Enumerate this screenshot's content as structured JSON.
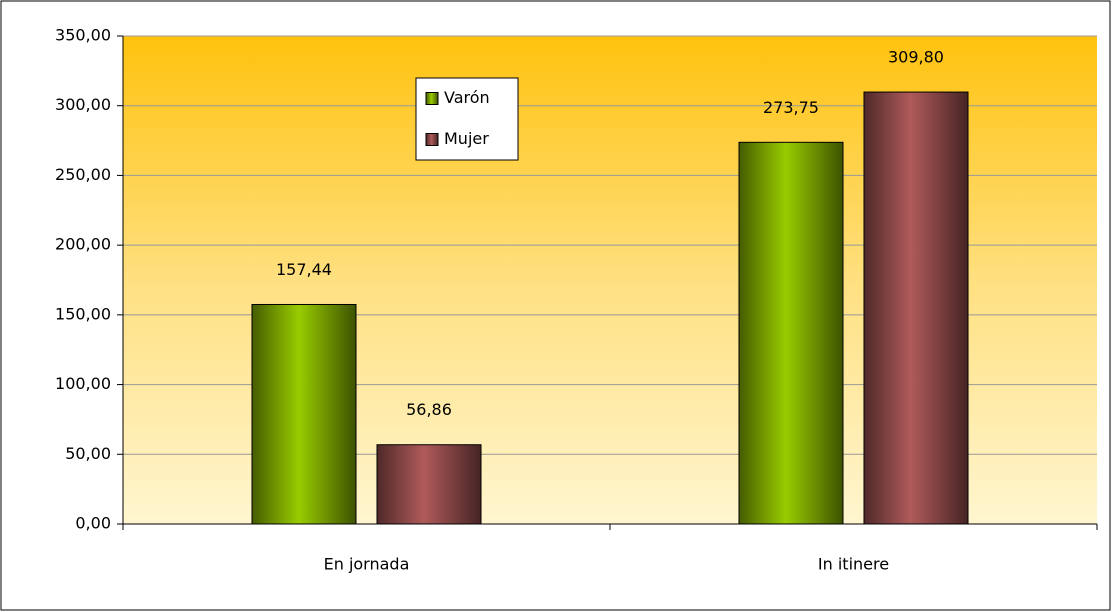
{
  "chart_data": {
    "type": "bar",
    "categories": [
      "En jornada",
      "In itinere"
    ],
    "series": [
      {
        "name": "Varón",
        "color": "#99cc00",
        "values": [
          157.44,
          273.75
        ],
        "value_labels": [
          "157,44",
          "273,75"
        ]
      },
      {
        "name": "Mujer",
        "color": "#b05a5a",
        "values": [
          56.86,
          309.8
        ],
        "value_labels": [
          "56,86",
          "309,80"
        ]
      }
    ],
    "ylim": [
      0,
      350
    ],
    "yticks": [
      {
        "value": 0,
        "label": "0,00"
      },
      {
        "value": 50,
        "label": "50,00"
      },
      {
        "value": 100,
        "label": "100,00"
      },
      {
        "value": 150,
        "label": "150,00"
      },
      {
        "value": 200,
        "label": "200,00"
      },
      {
        "value": 250,
        "label": "250,00"
      },
      {
        "value": 300,
        "label": "300,00"
      },
      {
        "value": 350,
        "label": "350,00"
      }
    ],
    "grid": true
  }
}
